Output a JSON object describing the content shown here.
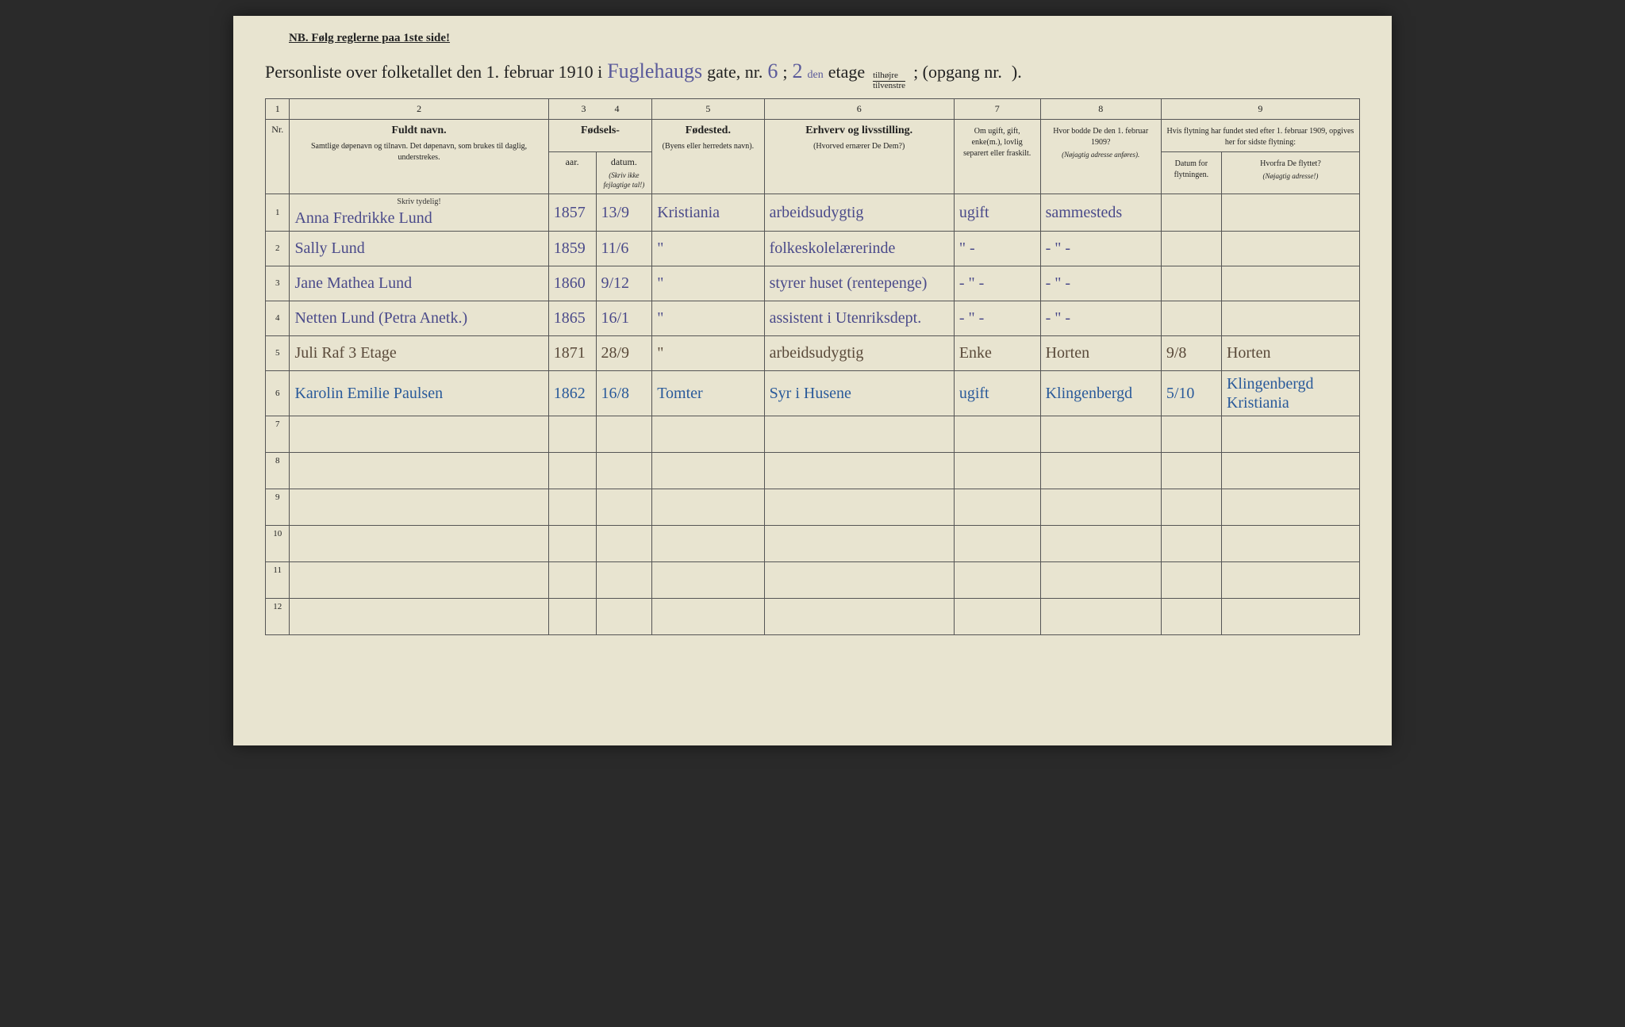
{
  "header": {
    "nb_text": "NB.  Følg reglerne paa 1ste side!",
    "title_prefix": "Personliste over folketallet den 1. februar 1910 i",
    "street_name": "Fuglehaugs",
    "gate_label": "gate, nr.",
    "gate_nr": "6",
    "semicolon": ";",
    "floor_nr": "2",
    "floor_suffix": "den",
    "etage_label": "etage",
    "tilhojre": "tilhøjre",
    "tilvenstre": "tilvenstre",
    "opgang_label": "; (opgang nr.",
    "opgang_nr": "",
    "closing": ")."
  },
  "columns": {
    "numbers": [
      "1",
      "2",
      "3",
      "4",
      "5",
      "6",
      "7",
      "8",
      "9"
    ],
    "nr_label": "Nr.",
    "name_main": "Fuldt navn.",
    "name_sub": "Samtlige døpenavn og tilnavn. Det døpenavn, som brukes til daglig, understrekes.",
    "fodsels": "Fødsels-",
    "aar": "aar.",
    "datum": "datum.",
    "aar_sub": "(Skriv ikke fejlagtige tal!)",
    "fodested": "Fødested.",
    "fodested_sub": "(Byens eller herredets navn).",
    "erhverv": "Erhverv og livsstilling.",
    "erhverv_sub": "(Hvorved ernærer De Dem?)",
    "marital": "Om ugift, gift, enke(m.), lovlig separert eller fraskilt.",
    "prev_addr": "Hvor bodde De den 1. februar 1909?",
    "prev_addr_sub": "(Nøjagtig adresse anføres).",
    "move_header": "Hvis flytning har fundet sted efter 1. februar 1909, opgives her for sidste flytning:",
    "move_date": "Datum for flytningen.",
    "from_where": "Hvorfra De flyttet?",
    "from_where_sub": "(Nøjagtig adresse!)",
    "skriv_tydelig": "Skriv tydelig!"
  },
  "rows": [
    {
      "nr": "1",
      "name": "Anna Fredrikke Lund",
      "year": "1857",
      "date": "13/9",
      "birthplace": "Kristiania",
      "occupation": "arbeidsudygtig",
      "marital": "ugift",
      "prev_addr": "sammesteds",
      "move_date": "",
      "from_where": "",
      "color": "purple"
    },
    {
      "nr": "2",
      "name": "Sally Lund",
      "year": "1859",
      "date": "11/6",
      "birthplace": "\"",
      "occupation": "folkeskolelærerinde",
      "marital": "\" -",
      "prev_addr": "- \" -",
      "move_date": "",
      "from_where": "",
      "color": "purple"
    },
    {
      "nr": "3",
      "name": "Jane Mathea Lund",
      "year": "1860",
      "date": "9/12",
      "birthplace": "\"",
      "occupation": "styrer huset (rentepenge)",
      "marital": "- \" -",
      "prev_addr": "- \" -",
      "move_date": "",
      "from_where": "",
      "color": "purple"
    },
    {
      "nr": "4",
      "name": "Netten Lund (Petra Anetk.)",
      "year": "1865",
      "date": "16/1",
      "birthplace": "\"",
      "occupation": "assistent i Utenriksdept.",
      "marital": "- \" -",
      "prev_addr": "- \" -",
      "move_date": "",
      "from_where": "",
      "color": "purple"
    },
    {
      "nr": "5",
      "name": "Juli Raf     3 Etage",
      "year": "1871",
      "date": "28/9",
      "birthplace": "\"",
      "occupation": "arbeidsudygtig",
      "marital": "Enke",
      "prev_addr": "Horten",
      "move_date": "9/8",
      "from_where": "Horten",
      "color": "brown"
    },
    {
      "nr": "6",
      "name": "Karolin Emilie Paulsen",
      "year": "1862",
      "date": "16/8",
      "birthplace": "Tomter",
      "occupation": "Syr i Husene",
      "marital": "ugift",
      "prev_addr": "Klingenbergd",
      "move_date": "5/10",
      "from_where": "Klingenbergd Kristiania",
      "color": "blue"
    }
  ],
  "empty_rows": [
    "7",
    "8",
    "9",
    "10",
    "11",
    "12"
  ],
  "colors": {
    "paper": "#e8e4d0",
    "ink_print": "#222222",
    "ink_purple": "#4a4a8a",
    "ink_brown": "#5a4a3a",
    "ink_blue": "#2a5a9a",
    "border": "#555555"
  }
}
